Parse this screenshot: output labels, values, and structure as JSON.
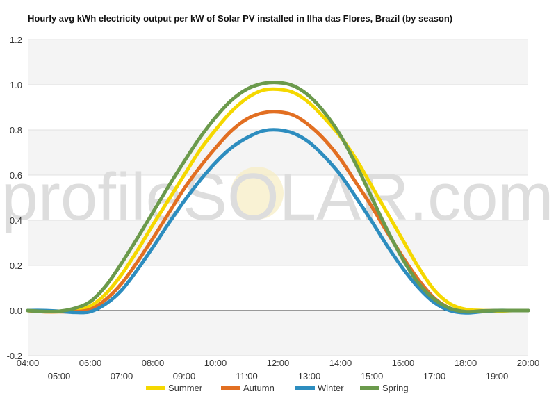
{
  "watermark": {
    "prefix": "profile",
    "solar": "SOLAR",
    "suffix": ".com"
  },
  "chart_data": {
    "type": "line",
    "title": "Hourly avg kWh electricity output per kW of Solar PV installed in Ilha das Flores, Brazil (by season)",
    "xlabel": "",
    "ylabel": "",
    "ylim": [
      -0.2,
      1.2
    ],
    "yticks": [
      "-0.2",
      "0.0",
      "0.2",
      "0.4",
      "0.6",
      "0.8",
      "1.0",
      "1.2"
    ],
    "xticks": [
      "04:00",
      "05:00",
      "06:00",
      "07:00",
      "08:00",
      "09:00",
      "10:00",
      "11:00",
      "12:00",
      "13:00",
      "14:00",
      "15:00",
      "16:00",
      "17:00",
      "18:00",
      "19:00",
      "20:00"
    ],
    "grid": true,
    "legend_position": "bottom",
    "x": [
      4.0,
      4.5,
      5.0,
      5.5,
      6.0,
      6.5,
      7.0,
      7.5,
      8.0,
      8.5,
      9.0,
      9.5,
      10.0,
      10.5,
      11.0,
      11.5,
      12.0,
      12.5,
      13.0,
      13.5,
      14.0,
      14.5,
      15.0,
      15.5,
      16.0,
      16.5,
      17.0,
      17.5,
      18.0,
      18.5,
      19.0,
      19.5,
      20.0
    ],
    "series": [
      {
        "name": "Summer",
        "color": "#f5d800",
        "values": [
          0.0,
          -0.005,
          -0.005,
          0.0,
          0.02,
          0.075,
          0.16,
          0.265,
          0.38,
          0.49,
          0.6,
          0.71,
          0.8,
          0.88,
          0.94,
          0.975,
          0.98,
          0.965,
          0.92,
          0.85,
          0.77,
          0.67,
          0.55,
          0.43,
          0.31,
          0.19,
          0.09,
          0.03,
          0.005,
          0.0,
          -0.002,
          0.0,
          0.0
        ]
      },
      {
        "name": "Autumn",
        "color": "#e26f22",
        "values": [
          0.0,
          -0.005,
          -0.005,
          -0.005,
          0.005,
          0.05,
          0.12,
          0.215,
          0.32,
          0.43,
          0.54,
          0.635,
          0.72,
          0.795,
          0.848,
          0.875,
          0.88,
          0.865,
          0.82,
          0.755,
          0.67,
          0.565,
          0.46,
          0.345,
          0.235,
          0.135,
          0.055,
          0.01,
          -0.005,
          -0.002,
          0.0,
          0.0,
          0.0
        ]
      },
      {
        "name": "Winter",
        "color": "#2d8dbf",
        "values": [
          0.0,
          0.0,
          -0.003,
          -0.008,
          -0.005,
          0.03,
          0.09,
          0.18,
          0.28,
          0.385,
          0.485,
          0.575,
          0.655,
          0.72,
          0.765,
          0.795,
          0.8,
          0.785,
          0.745,
          0.68,
          0.6,
          0.5,
          0.395,
          0.285,
          0.185,
          0.1,
          0.035,
          0.0,
          -0.01,
          -0.005,
          0.0,
          0.0,
          0.0
        ]
      },
      {
        "name": "Spring",
        "color": "#6b9a4c",
        "values": [
          0.0,
          -0.004,
          -0.003,
          0.01,
          0.04,
          0.11,
          0.21,
          0.32,
          0.435,
          0.55,
          0.66,
          0.765,
          0.855,
          0.93,
          0.98,
          1.005,
          1.01,
          0.995,
          0.95,
          0.875,
          0.775,
          0.645,
          0.5,
          0.355,
          0.225,
          0.12,
          0.05,
          0.01,
          -0.005,
          -0.002,
          0.0,
          0.0,
          0.0
        ]
      }
    ]
  }
}
